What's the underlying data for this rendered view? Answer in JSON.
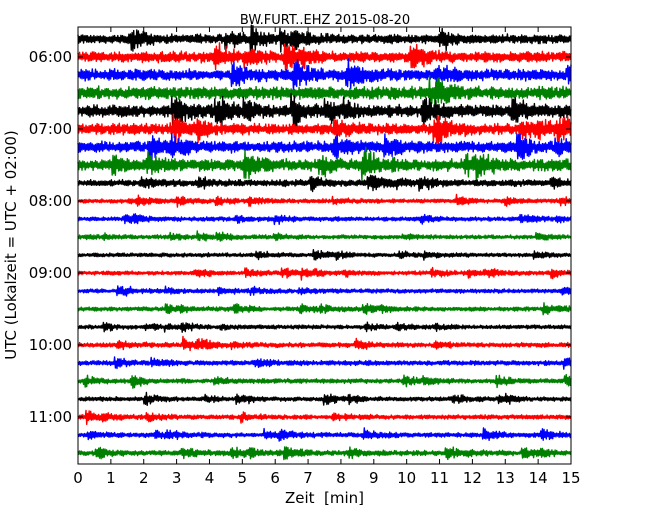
{
  "chart_data": {
    "type": "line",
    "title": "BW.FURT..EHZ 2015-08-20",
    "xlabel": "Zeit  [min]",
    "ylabel": "UTC (Lokalzeit = UTC + 02:00)",
    "xlim": [
      0,
      15
    ],
    "x_ticks": [
      "0",
      "1",
      "2",
      "3",
      "4",
      "5",
      "6",
      "7",
      "8",
      "9",
      "10",
      "11",
      "12",
      "13",
      "14",
      "15"
    ],
    "y_ticks": [
      "06:00",
      "07:00",
      "08:00",
      "09:00",
      "10:00",
      "11:00"
    ],
    "y_start": "05:45",
    "row_interval_min": 15,
    "series_colors": [
      "#000000",
      "#ff0000",
      "#0000ff",
      "#008000"
    ],
    "trace_rows": [
      {
        "start_utc": "05:45",
        "color": "#000000",
        "amplitude": 1.0
      },
      {
        "start_utc": "06:00",
        "color": "#ff0000",
        "amplitude": 1.15
      },
      {
        "start_utc": "06:15",
        "color": "#0000ff",
        "amplitude": 1.25
      },
      {
        "start_utc": "06:30",
        "color": "#008000",
        "amplitude": 1.35
      },
      {
        "start_utc": "06:45",
        "color": "#000000",
        "amplitude": 1.3
      },
      {
        "start_utc": "07:00",
        "color": "#ff0000",
        "amplitude": 1.2
      },
      {
        "start_utc": "07:15",
        "color": "#0000ff",
        "amplitude": 1.2
      },
      {
        "start_utc": "07:30",
        "color": "#008000",
        "amplitude": 1.25
      },
      {
        "start_utc": "07:45",
        "color": "#000000",
        "amplitude": 0.7
      },
      {
        "start_utc": "08:00",
        "color": "#ff0000",
        "amplitude": 0.45
      },
      {
        "start_utc": "08:15",
        "color": "#0000ff",
        "amplitude": 0.45
      },
      {
        "start_utc": "08:30",
        "color": "#008000",
        "amplitude": 0.42
      },
      {
        "start_utc": "08:45",
        "color": "#000000",
        "amplitude": 0.42
      },
      {
        "start_utc": "09:00",
        "color": "#ff0000",
        "amplitude": 0.42
      },
      {
        "start_utc": "09:15",
        "color": "#0000ff",
        "amplitude": 0.45
      },
      {
        "start_utc": "09:30",
        "color": "#008000",
        "amplitude": 0.45
      },
      {
        "start_utc": "09:45",
        "color": "#000000",
        "amplitude": 0.42
      },
      {
        "start_utc": "10:00",
        "color": "#ff0000",
        "amplitude": 0.5
      },
      {
        "start_utc": "10:15",
        "color": "#0000ff",
        "amplitude": 0.5
      },
      {
        "start_utc": "10:30",
        "color": "#008000",
        "amplitude": 0.48
      },
      {
        "start_utc": "10:45",
        "color": "#000000",
        "amplitude": 0.45
      },
      {
        "start_utc": "11:00",
        "color": "#ff0000",
        "amplitude": 0.48
      },
      {
        "start_utc": "11:15",
        "color": "#0000ff",
        "amplitude": 0.5
      },
      {
        "start_utc": "11:30",
        "color": "#008000",
        "amplitude": 0.55
      }
    ]
  }
}
